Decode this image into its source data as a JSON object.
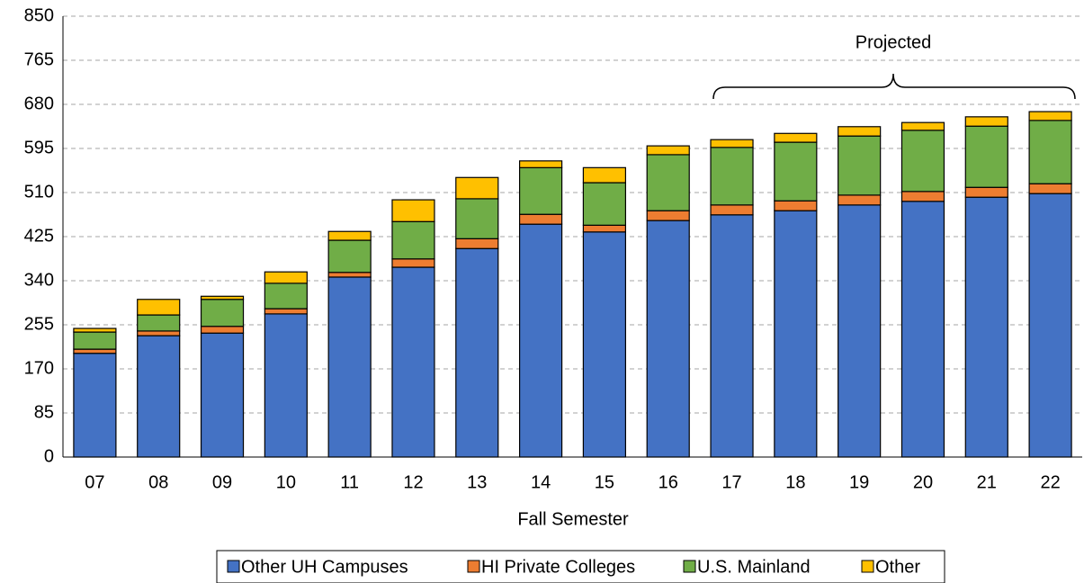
{
  "chart_data": {
    "type": "stacked_bar",
    "categories": [
      "07",
      "08",
      "09",
      "10",
      "11",
      "12",
      "13",
      "14",
      "15",
      "16",
      "17",
      "18",
      "19",
      "20",
      "21",
      "22"
    ],
    "series": [
      {
        "name": "Other UH Campuses",
        "color": "#4472c4",
        "values": [
          200,
          234,
          239,
          276,
          347,
          366,
          402,
          449,
          434,
          456,
          467,
          475,
          486,
          493,
          501,
          508
        ]
      },
      {
        "name": "HI Private Colleges",
        "color": "#ed7d31",
        "values": [
          8,
          9,
          13,
          10,
          9,
          16,
          19,
          19,
          13,
          19,
          19,
          19,
          19,
          19,
          19,
          19
        ]
      },
      {
        "name": "U.S. Mainland",
        "color": "#70ad47",
        "values": [
          33,
          31,
          52,
          49,
          62,
          72,
          77,
          90,
          82,
          108,
          111,
          113,
          114,
          118,
          118,
          122
        ]
      },
      {
        "name": "Other",
        "color": "#ffc000",
        "values": [
          7,
          30,
          6,
          22,
          17,
          42,
          41,
          13,
          29,
          17,
          15,
          17,
          18,
          15,
          18,
          17
        ]
      }
    ],
    "x_label": "Fall Semester",
    "annotation": "Projected",
    "ylim": [
      0,
      850
    ],
    "yticks": [
      0,
      85,
      170,
      255,
      340,
      425,
      510,
      595,
      680,
      765,
      850
    ],
    "grid": true,
    "legend": "bottom"
  }
}
